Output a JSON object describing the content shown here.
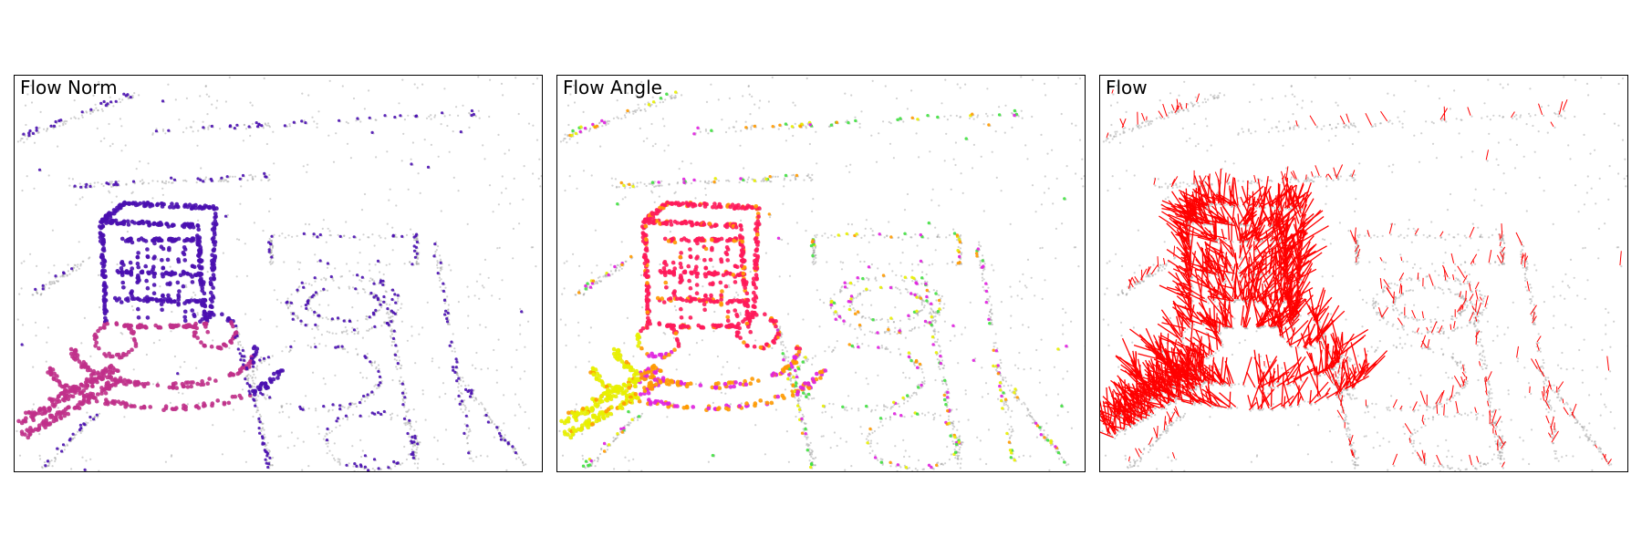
{
  "panels": [
    {
      "id": "norm",
      "title": "Flow Norm",
      "overlay": "purple-magenta-points"
    },
    {
      "id": "angle",
      "title": "Flow Angle",
      "overlay": "hue-wheel-points"
    },
    {
      "id": "flow",
      "title": "Flow",
      "overlay": "red-vectors"
    }
  ],
  "colors": {
    "background_points": "#9a9a9a",
    "norm_low": "#4a10b0",
    "norm_high": "#c0308a",
    "angle_main": "#ff1a5a",
    "angle_alt": "#ff9a00",
    "angle_green": "#40e040",
    "angle_yellow": "#e8f000",
    "angle_magenta": "#e020e0",
    "flow_vectors": "#ff0000"
  }
}
